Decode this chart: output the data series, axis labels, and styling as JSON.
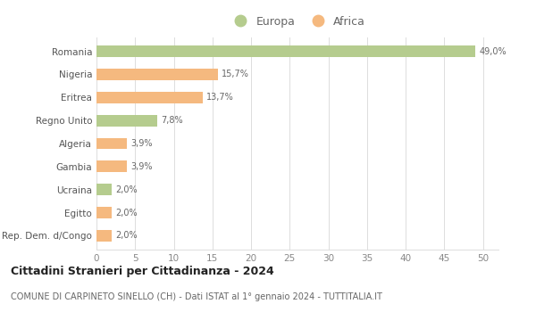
{
  "categories": [
    "Romania",
    "Nigeria",
    "Eritrea",
    "Regno Unito",
    "Algeria",
    "Gambia",
    "Ucraina",
    "Egitto",
    "Rep. Dem. d/Congo"
  ],
  "values": [
    49.0,
    15.7,
    13.7,
    7.8,
    3.9,
    3.9,
    2.0,
    2.0,
    2.0
  ],
  "labels": [
    "49,0%",
    "15,7%",
    "13,7%",
    "7,8%",
    "3,9%",
    "3,9%",
    "2,0%",
    "2,0%",
    "2,0%"
  ],
  "continents": [
    "Europa",
    "Africa",
    "Africa",
    "Europa",
    "Africa",
    "Africa",
    "Europa",
    "Africa",
    "Africa"
  ],
  "colors": {
    "Europa": "#b5cc8e",
    "Africa": "#f5b97f"
  },
  "legend": [
    "Europa",
    "Africa"
  ],
  "legend_colors": [
    "#b5cc8e",
    "#f5b97f"
  ],
  "xlim": [
    0,
    52
  ],
  "xticks": [
    0,
    5,
    10,
    15,
    20,
    25,
    30,
    35,
    40,
    45,
    50
  ],
  "title": "Cittadini Stranieri per Cittadinanza - 2024",
  "subtitle": "COMUNE DI CARPINETO SINELLO (CH) - Dati ISTAT al 1° gennaio 2024 - TUTTITALIA.IT",
  "bg_color": "#ffffff",
  "grid_color": "#dddddd",
  "bar_height": 0.5
}
